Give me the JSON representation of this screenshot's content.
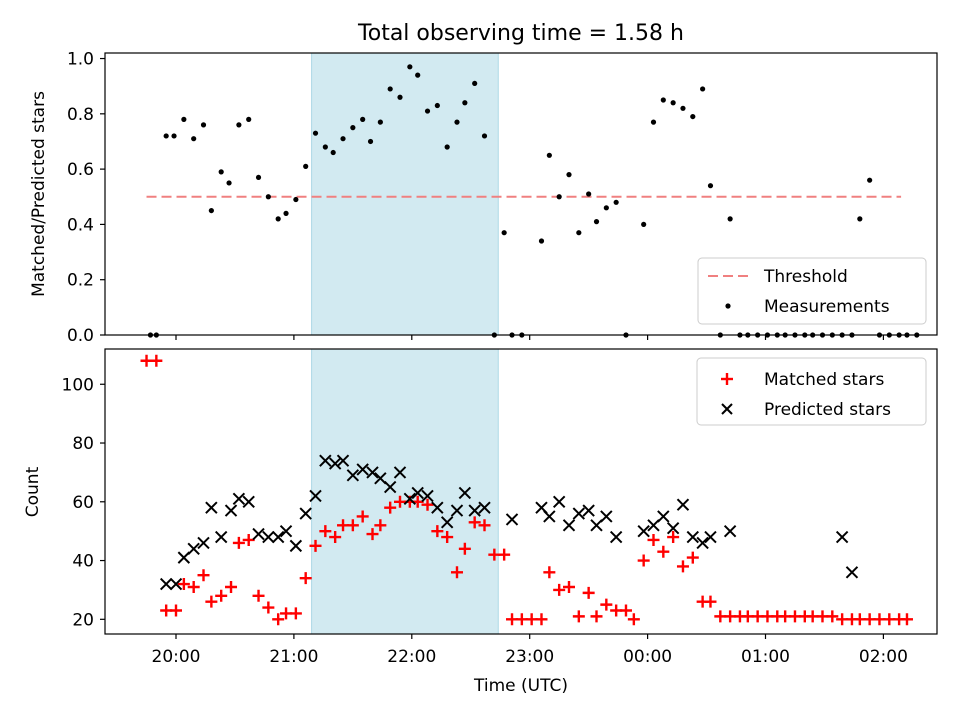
{
  "chart_data": {
    "type": "scatter",
    "title": "Total observing time = 1.58 h",
    "xlabel": "Time (UTC)",
    "x_tick_labels": [
      "20:00",
      "21:00",
      "22:00",
      "23:00",
      "00:00",
      "01:00",
      "02:00"
    ],
    "highlight_span": {
      "start": "21:09",
      "end": "22:44"
    },
    "colors": {
      "threshold": "#f08080",
      "measurements": "#000000",
      "matched": "#ff0000",
      "predicted": "#000000",
      "span": "#add8e6"
    },
    "top_panel": {
      "ylabel": "Matched/Predicted stars",
      "ylim": [
        0,
        1.02
      ],
      "y_tick_labels": [
        "0.0",
        "0.2",
        "0.4",
        "0.6",
        "0.8",
        "1.0"
      ],
      "y_ticks": [
        0,
        0.2,
        0.4,
        0.6,
        0.8,
        1.0
      ],
      "threshold": {
        "value": 0.5,
        "from": "19:45",
        "to": "02:09"
      },
      "legend": {
        "position": "lower right",
        "entries": [
          "Threshold",
          "Measurements"
        ]
      },
      "measurements": [
        [
          "19:47",
          0
        ],
        [
          "19:50",
          0
        ],
        [
          "19:55",
          0.72
        ],
        [
          "19:59",
          0.72
        ],
        [
          "20:04",
          0.78
        ],
        [
          "20:09",
          0.71
        ],
        [
          "20:14",
          0.76
        ],
        [
          "20:18",
          0.45
        ],
        [
          "20:23",
          0.59
        ],
        [
          "20:27",
          0.55
        ],
        [
          "20:32",
          0.76
        ],
        [
          "20:37",
          0.78
        ],
        [
          "20:42",
          0.57
        ],
        [
          "20:47",
          0.5
        ],
        [
          "20:52",
          0.42
        ],
        [
          "20:56",
          0.44
        ],
        [
          "21:01",
          0.49
        ],
        [
          "21:06",
          0.61
        ],
        [
          "21:11",
          0.73
        ],
        [
          "21:16",
          0.68
        ],
        [
          "21:20",
          0.66
        ],
        [
          "21:25",
          0.71
        ],
        [
          "21:30",
          0.75
        ],
        [
          "21:35",
          0.78
        ],
        [
          "21:39",
          0.7
        ],
        [
          "21:44",
          0.77
        ],
        [
          "21:49",
          0.89
        ],
        [
          "21:54",
          0.86
        ],
        [
          "21:59",
          0.97
        ],
        [
          "22:03",
          0.94
        ],
        [
          "22:08",
          0.81
        ],
        [
          "22:13",
          0.83
        ],
        [
          "22:18",
          0.68
        ],
        [
          "22:23",
          0.77
        ],
        [
          "22:27",
          0.84
        ],
        [
          "22:32",
          0.91
        ],
        [
          "22:37",
          0.72
        ],
        [
          "22:42",
          0
        ],
        [
          "22:47",
          0.37
        ],
        [
          "22:51",
          0
        ],
        [
          "22:56",
          0
        ],
        [
          "23:06",
          0.34
        ],
        [
          "23:10",
          0.65
        ],
        [
          "23:15",
          0.5
        ],
        [
          "23:20",
          0.58
        ],
        [
          "23:25",
          0.37
        ],
        [
          "23:30",
          0.51
        ],
        [
          "23:34",
          0.41
        ],
        [
          "23:39",
          0.46
        ],
        [
          "23:44",
          0.48
        ],
        [
          "23:49",
          0
        ],
        [
          "23:58",
          0.4
        ],
        [
          "00:03",
          0.77
        ],
        [
          "00:08",
          0.85
        ],
        [
          "00:13",
          0.84
        ],
        [
          "00:18",
          0.82
        ],
        [
          "00:23",
          0.79
        ],
        [
          "00:28",
          0.89
        ],
        [
          "00:32",
          0.54
        ],
        [
          "00:37",
          0
        ],
        [
          "00:42",
          0.42
        ],
        [
          "00:47",
          0
        ],
        [
          "00:51",
          0
        ],
        [
          "00:56",
          0
        ],
        [
          "01:01",
          0
        ],
        [
          "01:06",
          0
        ],
        [
          "01:10",
          0
        ],
        [
          "01:15",
          0
        ],
        [
          "01:20",
          0
        ],
        [
          "01:24",
          0
        ],
        [
          "01:29",
          0
        ],
        [
          "01:34",
          0
        ],
        [
          "01:39",
          0
        ],
        [
          "01:44",
          0
        ],
        [
          "01:48",
          0.42
        ],
        [
          "01:53",
          0.56
        ],
        [
          "01:58",
          0
        ],
        [
          "02:03",
          0
        ],
        [
          "02:08",
          0
        ],
        [
          "02:12",
          0
        ],
        [
          "02:17",
          0
        ]
      ]
    },
    "bottom_panel": {
      "ylabel": "Count",
      "ylim": [
        15,
        112
      ],
      "y_tick_labels": [
        "20",
        "40",
        "60",
        "80",
        "100"
      ],
      "y_ticks": [
        20,
        40,
        60,
        80,
        100
      ],
      "legend": {
        "position": "upper right",
        "entries": [
          "Matched stars",
          "Predicted stars"
        ]
      },
      "matched_stars": [
        [
          "19:45",
          108
        ],
        [
          "19:50",
          108
        ],
        [
          "19:55",
          23
        ],
        [
          "20:00",
          23
        ],
        [
          "20:04",
          32
        ],
        [
          "20:09",
          31
        ],
        [
          "20:14",
          35
        ],
        [
          "20:18",
          26
        ],
        [
          "20:23",
          28
        ],
        [
          "20:28",
          31
        ],
        [
          "20:32",
          46
        ],
        [
          "20:37",
          47
        ],
        [
          "20:42",
          28
        ],
        [
          "20:47",
          24
        ],
        [
          "20:52",
          20
        ],
        [
          "20:56",
          22
        ],
        [
          "21:01",
          22
        ],
        [
          "21:06",
          34
        ],
        [
          "21:11",
          45
        ],
        [
          "21:16",
          50
        ],
        [
          "21:21",
          48
        ],
        [
          "21:25",
          52
        ],
        [
          "21:30",
          52
        ],
        [
          "21:35",
          55
        ],
        [
          "21:40",
          49
        ],
        [
          "21:44",
          52
        ],
        [
          "21:49",
          58
        ],
        [
          "21:54",
          60
        ],
        [
          "21:59",
          60
        ],
        [
          "22:03",
          60
        ],
        [
          "22:08",
          59
        ],
        [
          "22:13",
          50
        ],
        [
          "22:18",
          48
        ],
        [
          "22:23",
          36
        ],
        [
          "22:27",
          44
        ],
        [
          "22:32",
          53
        ],
        [
          "22:37",
          52
        ],
        [
          "22:42",
          42
        ],
        [
          "22:47",
          42
        ],
        [
          "22:51",
          20
        ],
        [
          "22:56",
          20
        ],
        [
          "23:01",
          20
        ],
        [
          "23:06",
          20
        ],
        [
          "23:10",
          36
        ],
        [
          "23:15",
          30
        ],
        [
          "23:20",
          31
        ],
        [
          "23:25",
          21
        ],
        [
          "23:30",
          29
        ],
        [
          "23:34",
          21
        ],
        [
          "23:39",
          25
        ],
        [
          "23:44",
          23
        ],
        [
          "23:49",
          23
        ],
        [
          "23:53",
          20
        ],
        [
          "23:58",
          40
        ],
        [
          "00:03",
          47
        ],
        [
          "00:08",
          43
        ],
        [
          "00:13",
          48
        ],
        [
          "00:18",
          38
        ],
        [
          "00:23",
          41
        ],
        [
          "00:28",
          26
        ],
        [
          "00:32",
          26
        ],
        [
          "00:37",
          21
        ],
        [
          "00:42",
          21
        ],
        [
          "00:47",
          21
        ],
        [
          "00:51",
          21
        ],
        [
          "00:56",
          21
        ],
        [
          "01:01",
          21
        ],
        [
          "01:06",
          21
        ],
        [
          "01:10",
          21
        ],
        [
          "01:15",
          21
        ],
        [
          "01:20",
          21
        ],
        [
          "01:24",
          21
        ],
        [
          "01:29",
          21
        ],
        [
          "01:34",
          21
        ],
        [
          "01:39",
          20
        ],
        [
          "01:44",
          20
        ],
        [
          "01:48",
          20
        ],
        [
          "01:53",
          20
        ],
        [
          "01:58",
          20
        ],
        [
          "02:03",
          20
        ],
        [
          "02:08",
          20
        ],
        [
          "02:12",
          20
        ]
      ],
      "predicted_stars": [
        [
          "19:55",
          32
        ],
        [
          "20:00",
          32
        ],
        [
          "20:04",
          41
        ],
        [
          "20:09",
          44
        ],
        [
          "20:14",
          46
        ],
        [
          "20:18",
          58
        ],
        [
          "20:23",
          48
        ],
        [
          "20:28",
          57
        ],
        [
          "20:32",
          61
        ],
        [
          "20:37",
          60
        ],
        [
          "20:42",
          49
        ],
        [
          "20:47",
          48
        ],
        [
          "20:52",
          48
        ],
        [
          "20:56",
          50
        ],
        [
          "21:01",
          45
        ],
        [
          "21:06",
          56
        ],
        [
          "21:11",
          62
        ],
        [
          "21:16",
          74
        ],
        [
          "21:21",
          73
        ],
        [
          "21:25",
          74
        ],
        [
          "21:30",
          69
        ],
        [
          "21:35",
          71
        ],
        [
          "21:40",
          70
        ],
        [
          "21:44",
          68
        ],
        [
          "21:49",
          65
        ],
        [
          "21:54",
          70
        ],
        [
          "21:59",
          61
        ],
        [
          "22:03",
          63
        ],
        [
          "22:08",
          62
        ],
        [
          "22:13",
          58
        ],
        [
          "22:18",
          53
        ],
        [
          "22:23",
          57
        ],
        [
          "22:27",
          63
        ],
        [
          "22:32",
          57
        ],
        [
          "22:37",
          58
        ],
        [
          "22:51",
          54
        ],
        [
          "23:06",
          58
        ],
        [
          "23:10",
          55
        ],
        [
          "23:15",
          60
        ],
        [
          "23:20",
          52
        ],
        [
          "23:25",
          56
        ],
        [
          "23:30",
          57
        ],
        [
          "23:34",
          52
        ],
        [
          "23:39",
          55
        ],
        [
          "23:44",
          48
        ],
        [
          "23:58",
          50
        ],
        [
          "00:03",
          52
        ],
        [
          "00:08",
          55
        ],
        [
          "00:13",
          51
        ],
        [
          "00:18",
          59
        ],
        [
          "00:23",
          48
        ],
        [
          "00:28",
          46
        ],
        [
          "00:32",
          48
        ],
        [
          "00:42",
          50
        ],
        [
          "01:39",
          48
        ],
        [
          "01:44",
          36
        ]
      ]
    }
  }
}
